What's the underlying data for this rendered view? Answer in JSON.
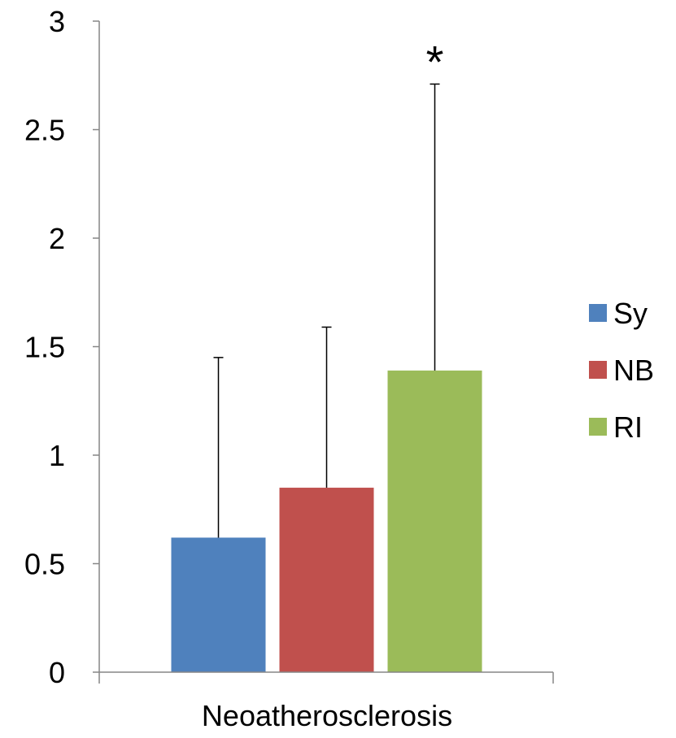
{
  "chart_data": {
    "type": "bar",
    "categories": [
      "Neoatherosclerosis"
    ],
    "series": [
      {
        "name": "Sy",
        "values": [
          0.62
        ],
        "error_plus": [
          0.83
        ],
        "color": "#4F81BD"
      },
      {
        "name": "NB",
        "values": [
          0.85
        ],
        "error_plus": [
          0.74
        ],
        "color": "#C0504D"
      },
      {
        "name": "RI",
        "values": [
          1.39
        ],
        "error_plus": [
          1.32
        ],
        "color": "#9BBB59"
      }
    ],
    "ylim": [
      0,
      3
    ],
    "yticks": [
      "0",
      "0.5",
      "1",
      "1.5",
      "2",
      "2.5",
      "3"
    ],
    "grid": false,
    "legend_position": "right",
    "annotations": [
      {
        "text": "*",
        "series": "RI"
      }
    ]
  }
}
